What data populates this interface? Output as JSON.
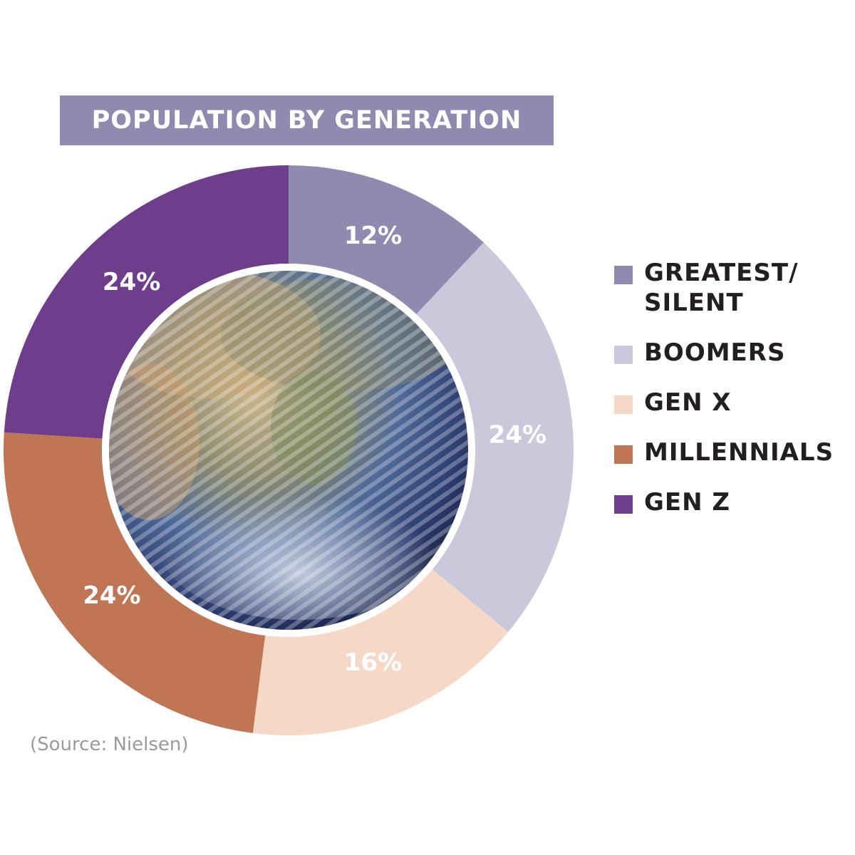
{
  "chart_data": {
    "type": "pie",
    "title": "POPULATION BY GENERATION",
    "categories": [
      "GREATEST/ SILENT",
      "BOOMERS",
      "GEN X",
      "MILLENNIALS",
      "GEN Z"
    ],
    "values": [
      12,
      24,
      16,
      24,
      24
    ],
    "data_labels": [
      "12%",
      "24%",
      "16%",
      "24%",
      "24%"
    ],
    "colors": [
      "#8f8bb0",
      "#cac8db",
      "#f5d8c6",
      "#c07554",
      "#6e3d8b"
    ],
    "legend_placement": "right",
    "donut": true
  },
  "legend": [
    {
      "label": "GREATEST/\nSILENT",
      "color": "#8f8bb0"
    },
    {
      "label": "BOOMERS",
      "color": "#cac8db"
    },
    {
      "label": "GEN X",
      "color": "#f5d8c6"
    },
    {
      "label": "MILLENNIALS",
      "color": "#c07554"
    },
    {
      "label": "GEN Z",
      "color": "#6e3d8b"
    }
  ],
  "source": "(Source: Nielsen)",
  "center_image": "earth-globe-image"
}
